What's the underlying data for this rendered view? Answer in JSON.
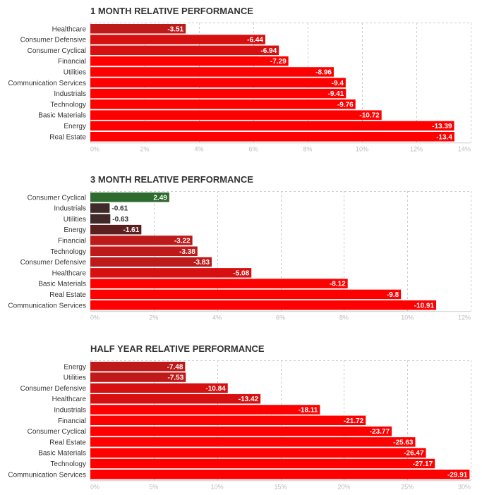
{
  "colors": {
    "strong_negative": "#ff0000",
    "mid_negative": "#bf1a1a",
    "weak_negative": "#5c1f1f",
    "dark_negative": "#3f2a2a",
    "positive": "#2e6b2e",
    "grid": "#cccccc",
    "axis_text": "#bbbbbb",
    "category_text": "#333333",
    "value_text": "#ffffff",
    "value_text_outside": "#333333"
  },
  "chart_data": [
    {
      "type": "bar",
      "orientation": "horizontal",
      "title": "1 MONTH RELATIVE PERFORMANCE",
      "categories": [
        "Healthcare",
        "Consumer Defensive",
        "Consumer Cyclical",
        "Financial",
        "Utilities",
        "Communication Services",
        "Industrials",
        "Technology",
        "Basic Materials",
        "Energy",
        "Real Estate"
      ],
      "values": [
        -3.51,
        -6.44,
        -6.94,
        -7.29,
        -8.96,
        -9.4,
        -9.41,
        -9.76,
        -10.72,
        -13.39,
        -13.4
      ],
      "value_labels": [
        "-3.51",
        "-6.44",
        "-6.94",
        "-7.29",
        "-8.96",
        "-9.4",
        "-9.41",
        "-9.76",
        "-10.72",
        "-13.39",
        "-13.4"
      ],
      "xlim": [
        0,
        14
      ],
      "ticks": [
        0,
        2,
        4,
        6,
        8,
        10,
        12,
        14
      ],
      "tick_labels": [
        "0%",
        "2%",
        "4%",
        "6%",
        "8%",
        "10%",
        "12%",
        "14%"
      ],
      "xlabel": "",
      "ylabel": "",
      "grid": true
    },
    {
      "type": "bar",
      "orientation": "horizontal",
      "title": "3 MONTH RELATIVE PERFORMANCE",
      "categories": [
        "Consumer Cyclical",
        "Industrials",
        "Utilities",
        "Energy",
        "Financial",
        "Technology",
        "Consumer Defensive",
        "Healthcare",
        "Basic Materials",
        "Real Estate",
        "Communication Services"
      ],
      "values": [
        2.49,
        -0.61,
        -0.63,
        -1.61,
        -3.22,
        -3.38,
        -3.83,
        -5.08,
        -8.12,
        -9.8,
        -10.91
      ],
      "value_labels": [
        "2.49",
        "-0.61",
        "-0.63",
        "-1.61",
        "-3.22",
        "-3.38",
        "-3.83",
        "-5.08",
        "-8.12",
        "-9.8",
        "-10.91"
      ],
      "xlim": [
        0,
        12
      ],
      "ticks": [
        0,
        2,
        4,
        6,
        8,
        10,
        12
      ],
      "tick_labels": [
        "0%",
        "2%",
        "4%",
        "6%",
        "8%",
        "10%",
        "12%"
      ],
      "xlabel": "",
      "ylabel": "",
      "grid": true
    },
    {
      "type": "bar",
      "orientation": "horizontal",
      "title": "HALF YEAR RELATIVE PERFORMANCE",
      "categories": [
        "Energy",
        "Utilities",
        "Consumer Defensive",
        "Healthcare",
        "Industrials",
        "Financial",
        "Consumer Cyclical",
        "Real Estate",
        "Basic Materials",
        "Technology",
        "Communication Services"
      ],
      "values": [
        -7.48,
        -7.53,
        -10.84,
        -13.42,
        -18.11,
        -21.72,
        -23.77,
        -25.63,
        -26.47,
        -27.17,
        -29.91
      ],
      "value_labels": [
        "-7.48",
        "-7.53",
        "-10.84",
        "-13.42",
        "-18.11",
        "-21.72",
        "-23.77",
        "-25.63",
        "-26.47",
        "-27.17",
        "-29.91"
      ],
      "xlim": [
        0,
        30
      ],
      "ticks": [
        0,
        5,
        10,
        15,
        20,
        25,
        30
      ],
      "tick_labels": [
        "0%",
        "5%",
        "10%",
        "15%",
        "20%",
        "25%",
        "30%"
      ],
      "xlabel": "",
      "ylabel": "",
      "grid": true
    }
  ]
}
